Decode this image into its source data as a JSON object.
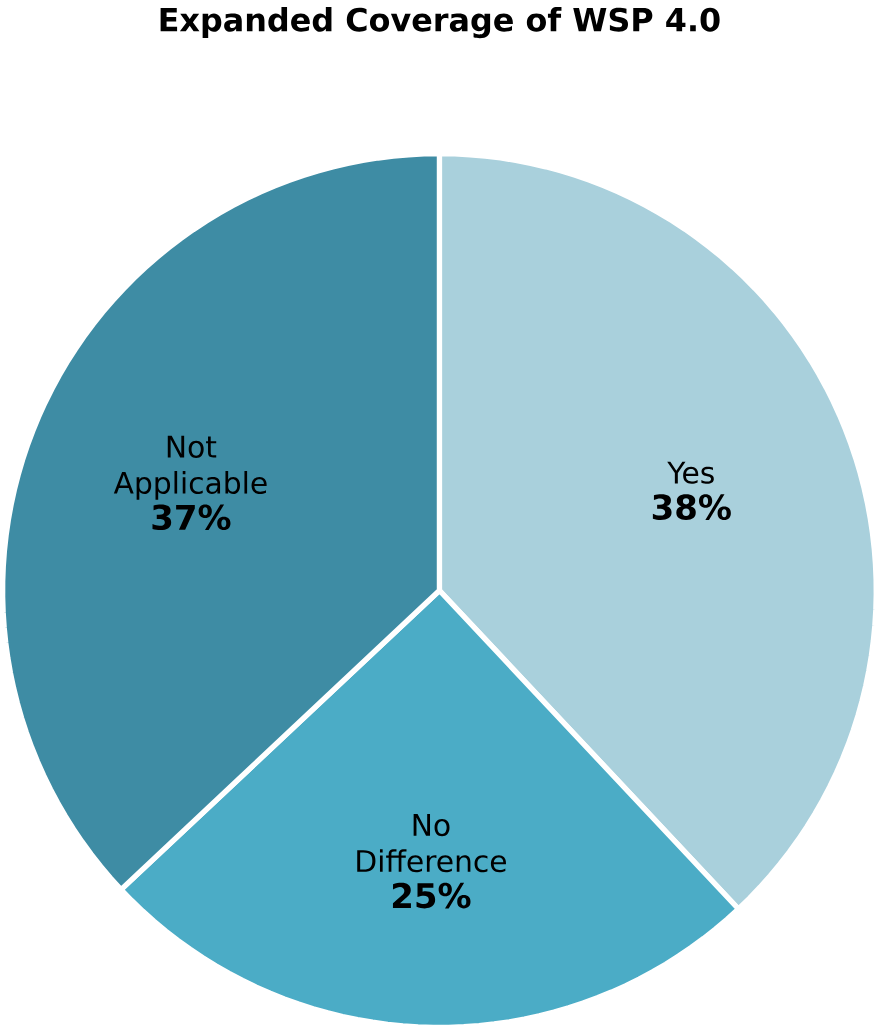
{
  "chart_data": {
    "type": "pie",
    "title": "Expanded Coverage of WSP 4.0",
    "categories": [
      "Yes",
      "No Difference",
      "Not Applicable"
    ],
    "values": [
      38,
      25,
      37
    ],
    "value_labels": [
      "38%",
      "25%",
      "37%"
    ],
    "colors": [
      "#a9d0dc",
      "#4bacc6",
      "#3e8ca4"
    ]
  }
}
